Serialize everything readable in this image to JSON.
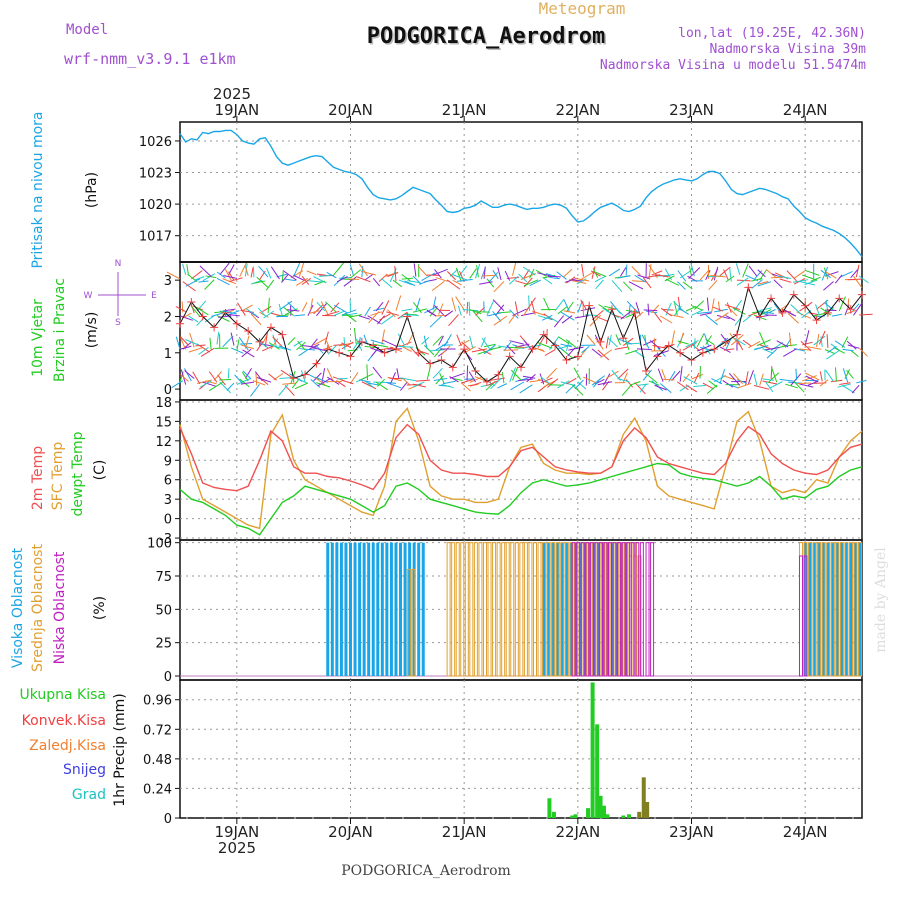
{
  "header": {
    "model_label": "Model",
    "model_name": "wrf-nmm_v3.9.1 e1km",
    "subtitle": "Meteogram",
    "station": "PODGORICA_Aerodrom",
    "lonlat": "lon,lat (19.25E, 42.36N)",
    "elev": "Nadmorska Visina 39m",
    "elev_model": "Nadmorska Visina u modelu 51.5474m",
    "footer_station": "PODGORICA_Aerodrom",
    "credit": "made by Angel"
  },
  "time_axis": {
    "year": "2025",
    "days": [
      "19JAN",
      "20JAN",
      "21JAN",
      "22JAN",
      "23JAN",
      "24JAN"
    ]
  },
  "colors": {
    "pressure": "#1aa6e6",
    "temp2m": "#f05050",
    "sfc": "#e0a030",
    "dewpt": "#22cc22",
    "high": "#1aa6e6",
    "mid": "#e0a030",
    "low": "#c020c0",
    "precip_total": "#22cc22",
    "precip_frozen": "#808020"
  },
  "chart_data": [
    {
      "type": "line",
      "panel": "pressure",
      "ylabel_top": "Pritisak na nivou mora",
      "ylabel": "(hPa)",
      "yticks": [
        "1026",
        "1023",
        "1020",
        "1017"
      ],
      "ylim": [
        1014.5,
        1027.8
      ],
      "series": [
        {
          "x": [
            18.5,
            18.55,
            18.6,
            18.65,
            18.7,
            18.75,
            18.8,
            18.85,
            18.9,
            18.95,
            19.0,
            19.05,
            19.1,
            19.15,
            19.2,
            19.25,
            19.3,
            19.35,
            19.4,
            19.45,
            19.5,
            19.55,
            19.6,
            19.65,
            19.7,
            19.75,
            19.8,
            19.85,
            19.9,
            19.95,
            20.0,
            20.05,
            20.1,
            20.15,
            20.2,
            20.25,
            20.3,
            20.35,
            20.4,
            20.45,
            20.5,
            20.55,
            20.6,
            20.65,
            20.7,
            20.75,
            20.8,
            20.85,
            20.9,
            20.95,
            21.0,
            21.05,
            21.1,
            21.15,
            21.2,
            21.25,
            21.3,
            21.35,
            21.4,
            21.45,
            21.5,
            21.55,
            21.6,
            21.65,
            21.7,
            21.75,
            21.8,
            21.85,
            21.9,
            21.95,
            22.0,
            22.05,
            22.1,
            22.15,
            22.2,
            22.25,
            22.3,
            22.35,
            22.4,
            22.45,
            22.5,
            22.55,
            22.6,
            22.65,
            22.7,
            22.75,
            22.8,
            22.85,
            22.9,
            22.95,
            23.0,
            23.05,
            23.1,
            23.15,
            23.2,
            23.25,
            23.3,
            23.35,
            23.4,
            23.45,
            23.5,
            23.55,
            23.6,
            23.65,
            23.7,
            23.75,
            23.8,
            23.85,
            23.9,
            23.95,
            24.0,
            24.05,
            24.1,
            24.15,
            24.2,
            24.25,
            24.3,
            24.35,
            24.4,
            24.45,
            24.5
          ],
          "y": [
            1026.7,
            1025.9,
            1026.2,
            1026.1,
            1026.8,
            1026.7,
            1026.9,
            1026.9,
            1027.0,
            1027.0,
            1026.6,
            1026.0,
            1025.8,
            1025.7,
            1026.2,
            1026.3,
            1025.5,
            1024.5,
            1023.9,
            1023.7,
            1023.9,
            1024.1,
            1024.3,
            1024.5,
            1024.6,
            1024.5,
            1024.0,
            1023.5,
            1023.3,
            1023.1,
            1023.0,
            1022.8,
            1022.4,
            1021.6,
            1020.9,
            1020.6,
            1020.5,
            1020.4,
            1020.5,
            1020.8,
            1021.2,
            1021.6,
            1021.4,
            1021.2,
            1021.0,
            1020.4,
            1019.9,
            1019.3,
            1019.2,
            1019.3,
            1019.6,
            1019.7,
            1019.9,
            1020.3,
            1020.0,
            1019.7,
            1019.7,
            1019.9,
            1020.0,
            1019.9,
            1019.7,
            1019.5,
            1019.6,
            1019.6,
            1019.7,
            1019.9,
            1020.0,
            1019.9,
            1019.6,
            1018.9,
            1018.3,
            1018.4,
            1018.8,
            1019.3,
            1019.7,
            1019.9,
            1020.1,
            1019.8,
            1019.4,
            1019.3,
            1019.5,
            1019.8,
            1020.6,
            1021.2,
            1021.6,
            1021.9,
            1022.1,
            1022.3,
            1022.4,
            1022.3,
            1022.2,
            1022.4,
            1022.8,
            1023.1,
            1023.1,
            1022.9,
            1022.2,
            1021.4,
            1021.0,
            1020.9,
            1021.1,
            1021.3,
            1021.5,
            1021.4,
            1021.2,
            1021.0,
            1020.7,
            1020.5,
            1019.8,
            1019.3,
            1018.7,
            1018.4,
            1018.2,
            1017.9,
            1017.7,
            1017.5,
            1017.2,
            1016.8,
            1016.3,
            1015.7,
            1015.0
          ]
        }
      ]
    },
    {
      "type": "line",
      "panel": "wind",
      "ylabel_top": "10m Vjetar",
      "ylabel_bottom": "Brzina i Pravac",
      "ylabel": "(m/s)",
      "compass": {
        "n": "N",
        "s": "S",
        "w": "W",
        "e": "E"
      },
      "yticks": [
        "0",
        "1",
        "2",
        "3"
      ],
      "ylim": [
        -0.3,
        3.5
      ],
      "series": [
        {
          "name": "speed",
          "x": [
            18.5,
            18.6,
            18.7,
            18.8,
            18.9,
            19.0,
            19.1,
            19.2,
            19.3,
            19.4,
            19.5,
            19.6,
            19.7,
            19.8,
            19.9,
            20.0,
            20.1,
            20.2,
            20.3,
            20.4,
            20.5,
            20.6,
            20.7,
            20.8,
            20.9,
            21.0,
            21.1,
            21.2,
            21.3,
            21.4,
            21.5,
            21.6,
            21.7,
            21.8,
            21.9,
            22.0,
            22.1,
            22.2,
            22.3,
            22.4,
            22.5,
            22.6,
            22.7,
            22.8,
            22.9,
            23.0,
            23.1,
            23.2,
            23.3,
            23.4,
            23.5,
            23.6,
            23.7,
            23.8,
            23.9,
            24.0,
            24.1,
            24.2,
            24.3,
            24.4,
            24.5
          ],
          "y": [
            1.8,
            2.4,
            2.0,
            1.7,
            2.1,
            1.8,
            1.6,
            1.3,
            1.7,
            1.5,
            0.3,
            0.4,
            0.7,
            1.1,
            1.0,
            0.9,
            1.3,
            1.2,
            1.0,
            1.1,
            2.0,
            1.0,
            0.7,
            0.8,
            0.6,
            1.1,
            0.5,
            0.2,
            0.4,
            0.9,
            0.6,
            1.1,
            1.5,
            1.2,
            0.8,
            0.9,
            2.3,
            1.3,
            2.2,
            1.4,
            2.1,
            0.5,
            0.9,
            1.2,
            1.0,
            0.8,
            1.0,
            1.1,
            1.3,
            1.5,
            2.8,
            2.0,
            2.5,
            2.1,
            2.6,
            2.3,
            1.9,
            2.1,
            2.5,
            2.2,
            2.6
          ]
        }
      ]
    },
    {
      "type": "line",
      "panel": "temperature",
      "ylabel_t2m": "2m Temp",
      "ylabel_sfc": "SFC Temp",
      "ylabel_dew": "dewpt Temp",
      "ylabel": "(C)",
      "yticks": [
        "18",
        "15",
        "12",
        "9",
        "6",
        "3",
        "0",
        "-3"
      ],
      "ylim": [
        -3.3,
        18.3
      ],
      "x": [
        18.5,
        18.6,
        18.7,
        18.8,
        18.9,
        19.0,
        19.1,
        19.2,
        19.3,
        19.4,
        19.5,
        19.6,
        19.7,
        19.8,
        19.9,
        20.0,
        20.1,
        20.2,
        20.3,
        20.4,
        20.5,
        20.6,
        20.7,
        20.8,
        20.9,
        21.0,
        21.1,
        21.2,
        21.3,
        21.4,
        21.5,
        21.6,
        21.7,
        21.8,
        21.9,
        22.0,
        22.1,
        22.2,
        22.3,
        22.4,
        22.5,
        22.6,
        22.7,
        22.8,
        22.9,
        23.0,
        23.1,
        23.2,
        23.3,
        23.4,
        23.5,
        23.6,
        23.7,
        23.8,
        23.9,
        24.0,
        24.1,
        24.2,
        24.3,
        24.4,
        24.5
      ],
      "series": [
        {
          "name": "2m",
          "values": [
            14.0,
            10.0,
            5.5,
            4.8,
            4.5,
            4.3,
            5.0,
            9.0,
            13.5,
            12.0,
            8.0,
            7.0,
            7.0,
            6.5,
            6.3,
            5.8,
            5.2,
            4.5,
            7.0,
            12.5,
            14.5,
            13.0,
            9.0,
            7.5,
            7.0,
            7.0,
            6.8,
            6.5,
            6.5,
            8.0,
            10.5,
            11.0,
            9.5,
            8.0,
            7.5,
            7.2,
            7.0,
            7.0,
            8.0,
            12.0,
            14.0,
            12.5,
            9.5,
            8.5,
            8.0,
            7.5,
            7.0,
            6.8,
            8.5,
            12.0,
            14.2,
            13.0,
            10.0,
            8.5,
            7.5,
            7.0,
            6.8,
            7.5,
            9.5,
            11.0,
            11.5
          ]
        },
        {
          "name": "sfc",
          "values": [
            14.5,
            8.0,
            3.0,
            2.0,
            1.0,
            0.0,
            -1.0,
            -1.5,
            13.0,
            16.0,
            9.0,
            6.0,
            5.0,
            4.0,
            3.0,
            2.0,
            1.0,
            0.5,
            5.0,
            15.0,
            17.0,
            12.0,
            5.0,
            3.5,
            3.0,
            3.0,
            2.5,
            2.5,
            3.0,
            8.0,
            11.0,
            11.5,
            8.5,
            7.5,
            7.0,
            7.0,
            6.8,
            7.0,
            8.0,
            13.0,
            15.5,
            12.0,
            5.0,
            3.5,
            3.0,
            2.5,
            2.0,
            1.5,
            8.0,
            15.0,
            16.5,
            12.0,
            5.0,
            4.0,
            4.5,
            4.0,
            6.0,
            5.5,
            9.5,
            12.0,
            13.5
          ]
        },
        {
          "name": "dew",
          "values": [
            4.5,
            3.0,
            2.5,
            1.5,
            0.5,
            -1.0,
            -1.5,
            -2.5,
            0.0,
            2.5,
            3.5,
            5.0,
            4.5,
            4.0,
            3.5,
            3.0,
            2.0,
            1.0,
            2.0,
            5.0,
            5.5,
            4.5,
            3.0,
            2.5,
            2.0,
            1.5,
            1.0,
            0.8,
            0.7,
            2.0,
            4.0,
            5.5,
            6.0,
            5.5,
            5.0,
            5.2,
            5.5,
            6.0,
            6.5,
            7.0,
            7.5,
            8.0,
            8.5,
            8.3,
            7.0,
            6.5,
            6.2,
            6.0,
            5.5,
            5.0,
            5.5,
            6.5,
            5.0,
            3.0,
            3.5,
            3.2,
            4.5,
            5.0,
            6.5,
            7.5,
            8.0
          ]
        }
      ]
    },
    {
      "type": "bar",
      "panel": "clouds",
      "ylabel_high": "Visoka Oblacnost",
      "ylabel_mid": "Srednja Oblacnost",
      "ylabel_low": "Niska Oblacnost",
      "ylabel": "(%)",
      "yticks": [
        "100",
        "75",
        "50",
        "25",
        "0"
      ],
      "ylim": [
        -3,
        102
      ],
      "series": [
        {
          "name": "high",
          "ranges": [
            [
              19.8,
              20.65,
              100
            ],
            [
              21.7,
              22.45,
              100
            ],
            [
              24.0,
              24.5,
              100
            ]
          ]
        },
        {
          "name": "mid",
          "ranges": [
            [
              20.5,
              20.55,
              80
            ],
            [
              20.85,
              22.5,
              100
            ],
            [
              22.45,
              22.55,
              90
            ],
            [
              23.95,
              24.5,
              100
            ]
          ]
        },
        {
          "name": "low",
          "ranges": [
            [
              21.95,
              22.55,
              100
            ],
            [
              22.6,
              22.65,
              100
            ],
            [
              23.95,
              24.0,
              90
            ]
          ]
        }
      ]
    },
    {
      "type": "bar",
      "panel": "precip",
      "legend": {
        "total": "Ukupna Kisa",
        "conv": "Konvek.Kisa",
        "frozen": "Zaledj.Kisa",
        "snow": "Snijeg",
        "graupel": "Grad"
      },
      "ylabel": "1hr Precip (mm)",
      "yticks": [
        "0.96",
        "0.72",
        "0.48",
        "0.24",
        "0"
      ],
      "ylim": [
        0,
        1.12
      ],
      "series": [
        {
          "name": "total",
          "x": [
            21.75,
            21.79,
            21.95,
            21.98,
            22.09,
            22.13,
            22.17,
            22.2,
            22.23,
            22.26,
            22.4,
            22.45
          ],
          "values": [
            0.16,
            0.05,
            0.02,
            0.03,
            0.08,
            1.1,
            0.76,
            0.18,
            0.1,
            0.03,
            0.02,
            0.03
          ]
        },
        {
          "name": "frozen",
          "x": [
            22.54,
            22.58,
            22.61
          ],
          "values": [
            0.05,
            0.33,
            0.13
          ]
        }
      ]
    }
  ]
}
